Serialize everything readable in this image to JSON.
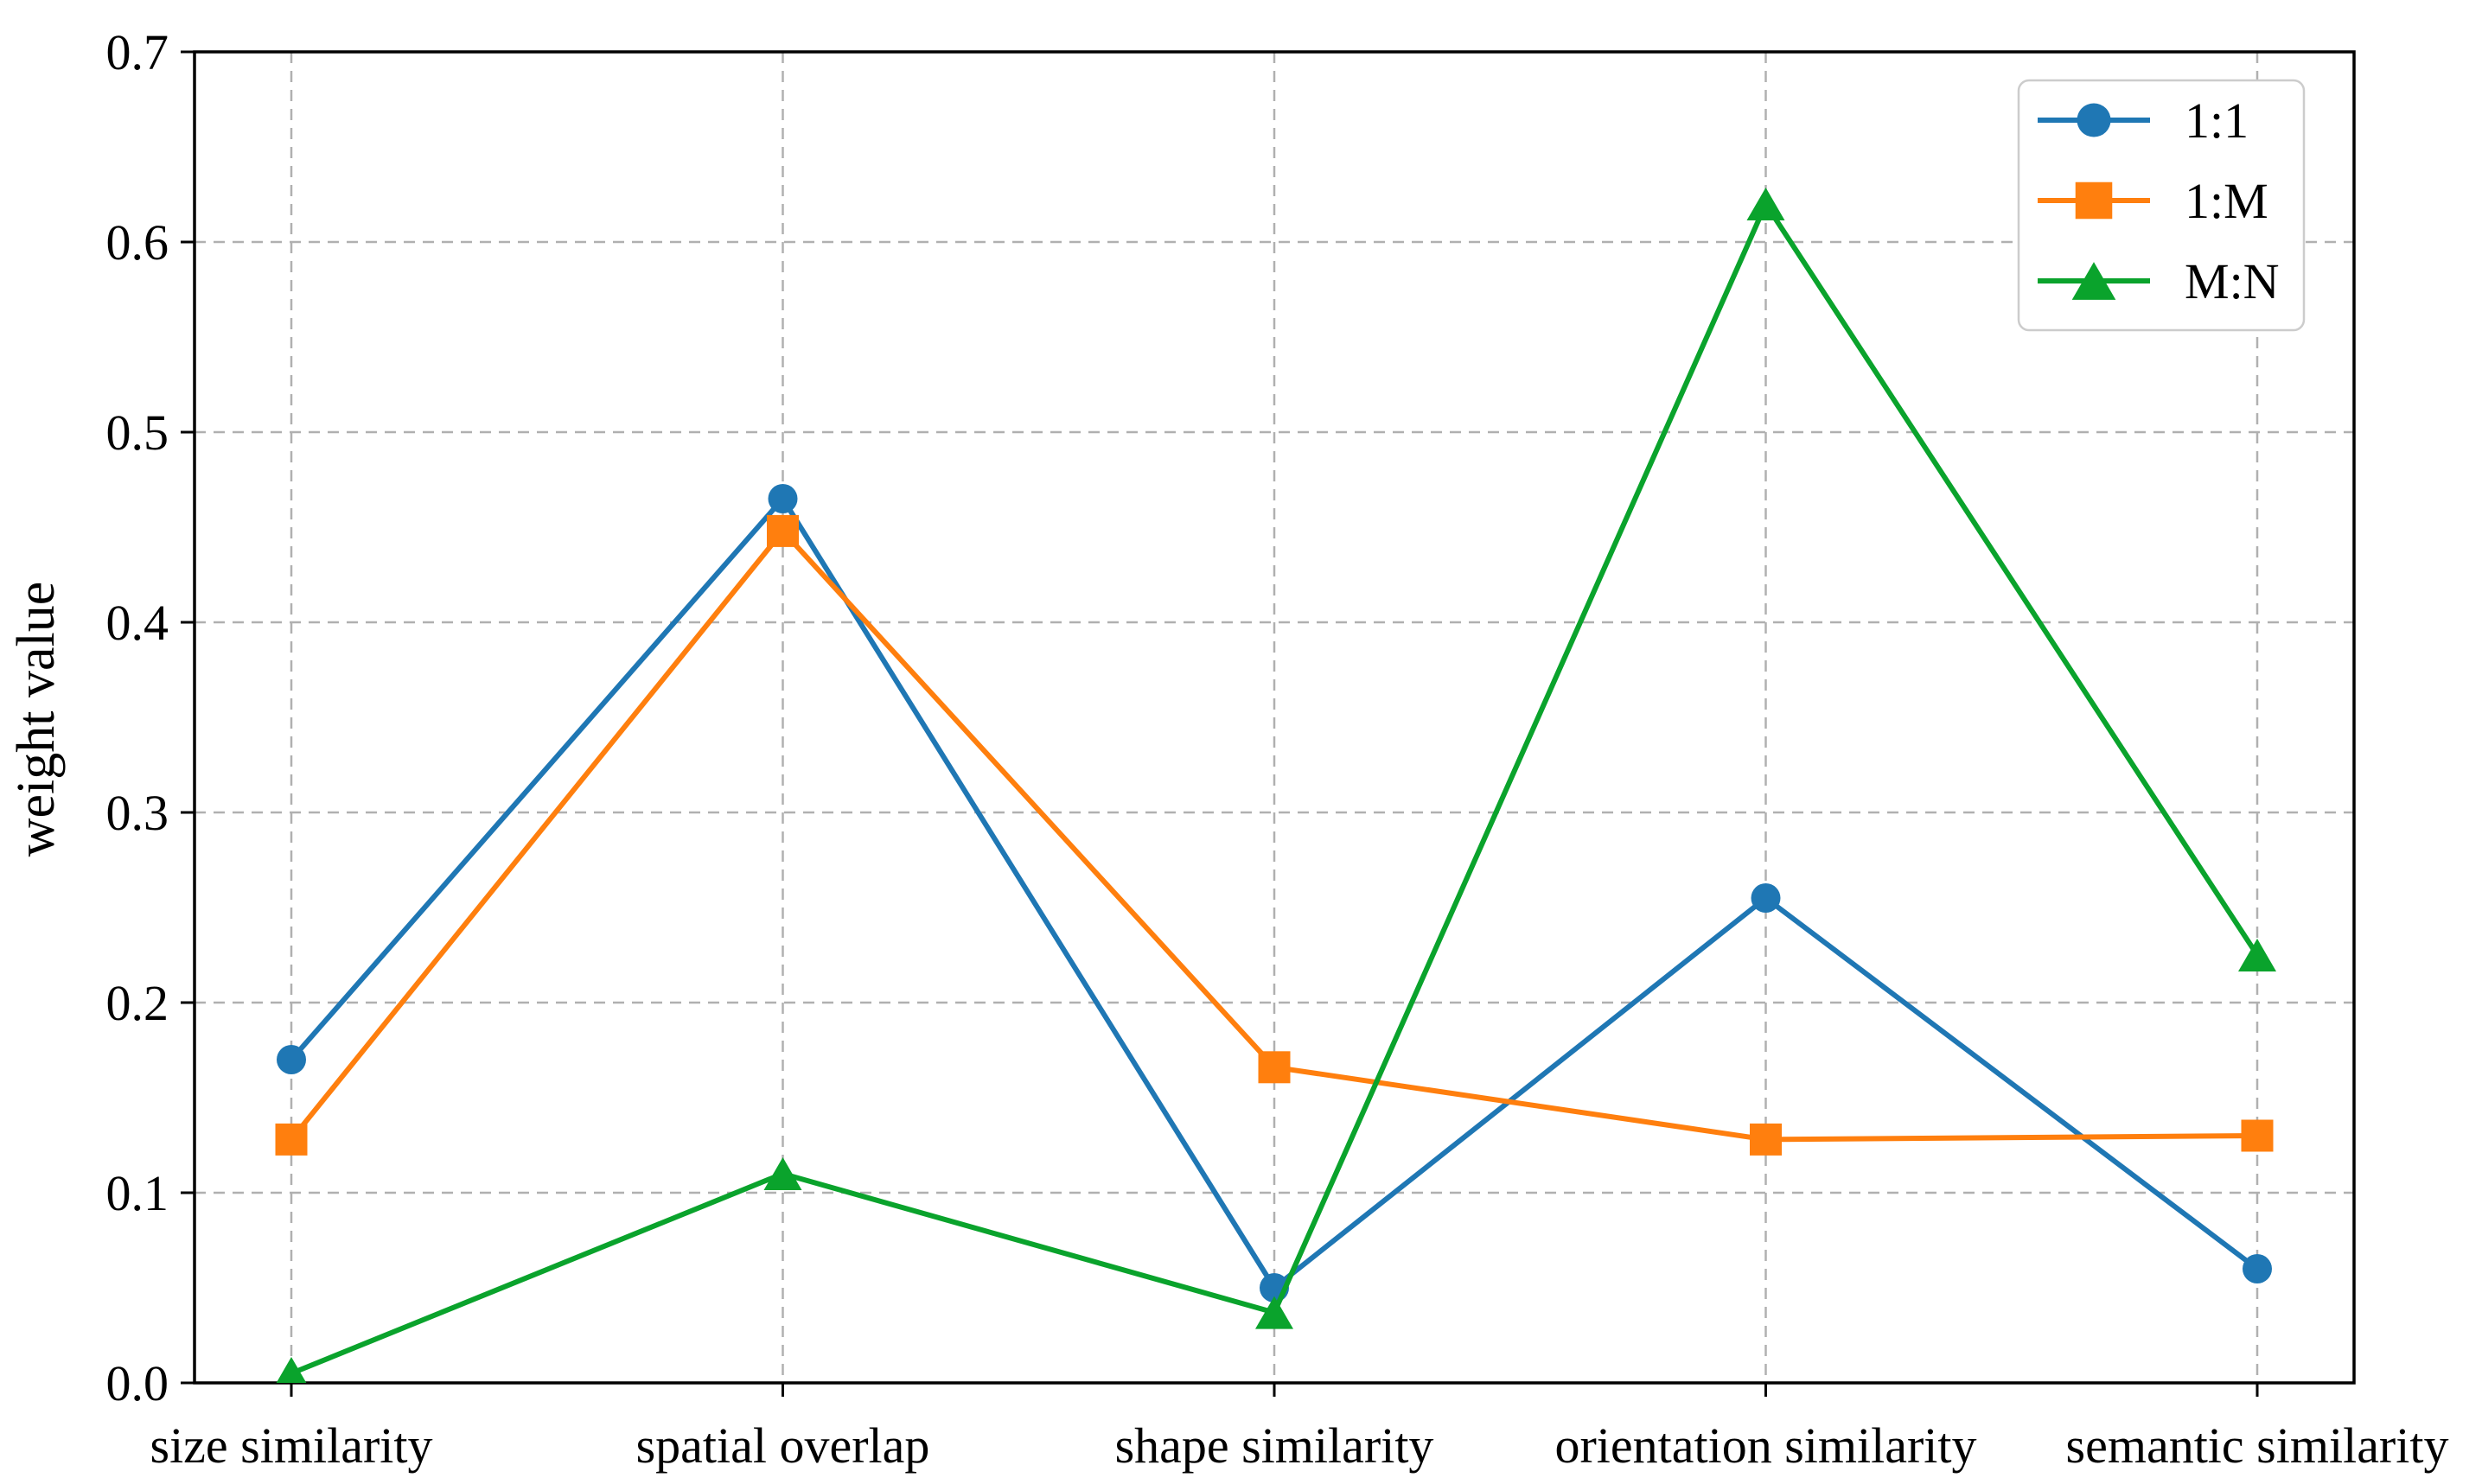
{
  "chart_data": {
    "type": "line",
    "title": "",
    "xlabel": "",
    "ylabel": "weight value",
    "categories": [
      "size similarity",
      "spatial overlap",
      "shape similarity",
      "orientation similarity",
      "semantic similarity"
    ],
    "series": [
      {
        "name": "1:1",
        "marker": "circle",
        "color": "#1f77b4",
        "values": [
          0.17,
          0.465,
          0.05,
          0.255,
          0.06
        ]
      },
      {
        "name": "1:M",
        "marker": "square",
        "color": "#ff7f0e",
        "values": [
          0.128,
          0.448,
          0.166,
          0.128,
          0.13
        ]
      },
      {
        "name": "M:N",
        "marker": "triangle",
        "color": "#0aa32c",
        "values": [
          0.005,
          0.11,
          0.037,
          0.62,
          0.225
        ]
      }
    ],
    "ylim": [
      0.0,
      0.7
    ],
    "yticks": [
      0.0,
      0.1,
      0.2,
      0.3,
      0.4,
      0.5,
      0.6,
      0.7
    ],
    "ytick_labels": [
      "0.0",
      "0.1",
      "0.2",
      "0.3",
      "0.4",
      "0.5",
      "0.6",
      "0.7"
    ],
    "grid": "dashed",
    "grid_color": "#b0b0b0",
    "axis_color": "#000000",
    "background_color": "#ffffff",
    "legend_position": "upper-right",
    "legend_border_color": "#cccccc"
  }
}
